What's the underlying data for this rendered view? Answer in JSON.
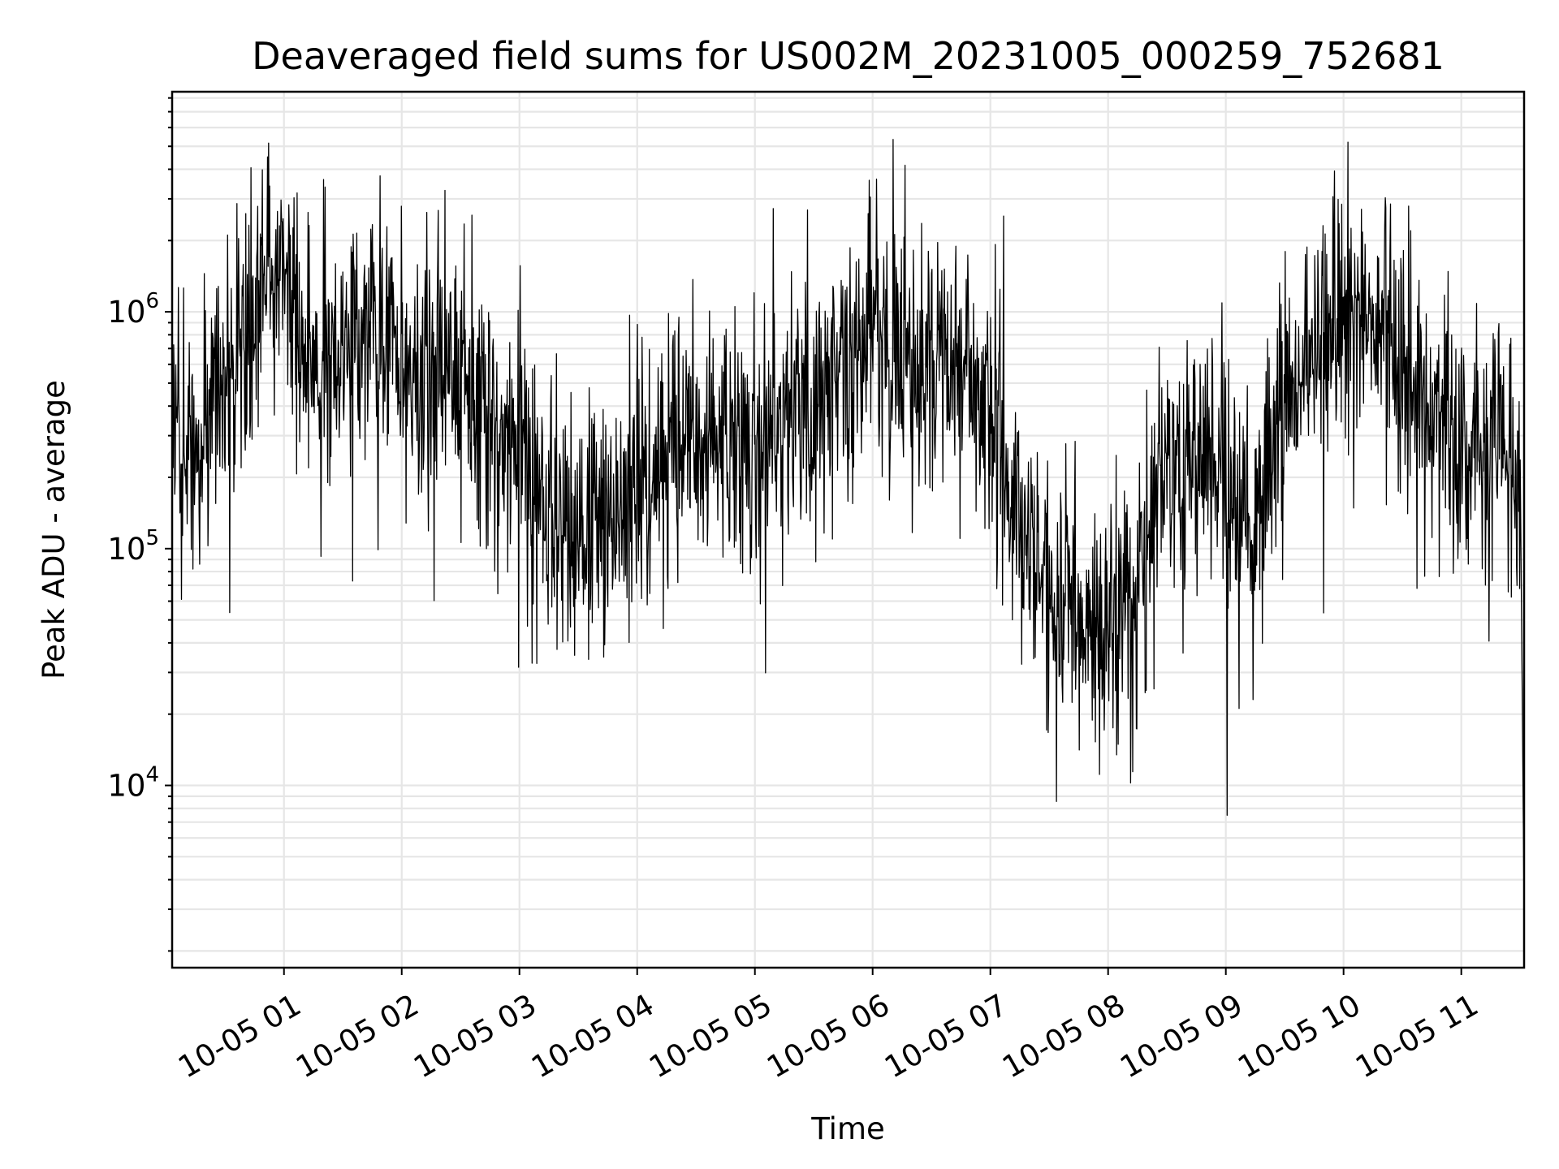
{
  "chart_data": {
    "type": "line",
    "title": "Deaveraged field sums for US002M_20231005_000259_752681",
    "xlabel": "Time",
    "ylabel": "Peak ADU - average",
    "yscale": "log",
    "ylim": [
      1700,
      8500000
    ],
    "y_ticks": [
      {
        "value": 10000,
        "base": "10",
        "exp": "4"
      },
      {
        "value": 100000,
        "base": "10",
        "exp": "5"
      },
      {
        "value": 1000000,
        "base": "10",
        "exp": "6"
      }
    ],
    "xlim": [
      "2023-10-05 00:03",
      "2023-10-05 11:32"
    ],
    "x_ticks": [
      {
        "value": "2023-10-05 01:00",
        "label": "10-05 01"
      },
      {
        "value": "2023-10-05 02:00",
        "label": "10-05 02"
      },
      {
        "value": "2023-10-05 03:00",
        "label": "10-05 03"
      },
      {
        "value": "2023-10-05 04:00",
        "label": "10-05 04"
      },
      {
        "value": "2023-10-05 05:00",
        "label": "10-05 05"
      },
      {
        "value": "2023-10-05 06:00",
        "label": "10-05 06"
      },
      {
        "value": "2023-10-05 07:00",
        "label": "10-05 07"
      },
      {
        "value": "2023-10-05 08:00",
        "label": "10-05 08"
      },
      {
        "value": "2023-10-05 09:00",
        "label": "10-05 09"
      },
      {
        "value": "2023-10-05 10:00",
        "label": "10-05 10"
      },
      {
        "value": "2023-10-05 11:00",
        "label": "10-05 11"
      }
    ],
    "grid": true,
    "legend": "none",
    "line_color": "#000000",
    "series": [
      {
        "x": [
          "2023-10-05 00:03",
          "2023-10-05 00:15",
          "2023-10-05 00:30",
          "2023-10-05 00:45",
          "2023-10-05 01:00",
          "2023-10-05 01:15",
          "2023-10-05 01:30",
          "2023-10-05 01:45",
          "2023-10-05 02:00",
          "2023-10-05 02:15",
          "2023-10-05 02:30",
          "2023-10-05 02:45",
          "2023-10-05 03:00",
          "2023-10-05 03:15",
          "2023-10-05 03:30",
          "2023-10-05 03:45",
          "2023-10-05 04:00",
          "2023-10-05 04:15",
          "2023-10-05 04:30",
          "2023-10-05 04:45",
          "2023-10-05 05:00",
          "2023-10-05 05:15",
          "2023-10-05 05:30",
          "2023-10-05 05:45",
          "2023-10-05 06:00",
          "2023-10-05 06:15",
          "2023-10-05 06:30",
          "2023-10-05 06:45",
          "2023-10-05 07:00",
          "2023-10-05 07:15",
          "2023-10-05 07:30",
          "2023-10-05 07:45",
          "2023-10-05 08:00",
          "2023-10-05 08:15",
          "2023-10-05 08:30",
          "2023-10-05 08:45",
          "2023-10-05 09:00",
          "2023-10-05 09:15",
          "2023-10-05 09:30",
          "2023-10-05 09:45",
          "2023-10-05 10:00",
          "2023-10-05 10:15",
          "2023-10-05 10:30",
          "2023-10-05 10:45",
          "2023-10-05 11:00",
          "2023-10-05 11:15",
          "2023-10-05 11:30",
          "2023-10-05 11:32"
        ],
        "y": [
          250000,
          300000,
          550000,
          900000,
          1500000,
          500000,
          700000,
          1100000,
          500000,
          600000,
          550000,
          300000,
          220000,
          150000,
          110000,
          130000,
          170000,
          250000,
          280000,
          300000,
          300000,
          350000,
          450000,
          600000,
          900000,
          700000,
          550000,
          600000,
          380000,
          130000,
          70000,
          50000,
          50000,
          60000,
          200000,
          250000,
          200000,
          120000,
          450000,
          700000,
          1100000,
          1000000,
          600000,
          350000,
          300000,
          250000,
          200000,
          3000
        ]
      }
    ]
  }
}
